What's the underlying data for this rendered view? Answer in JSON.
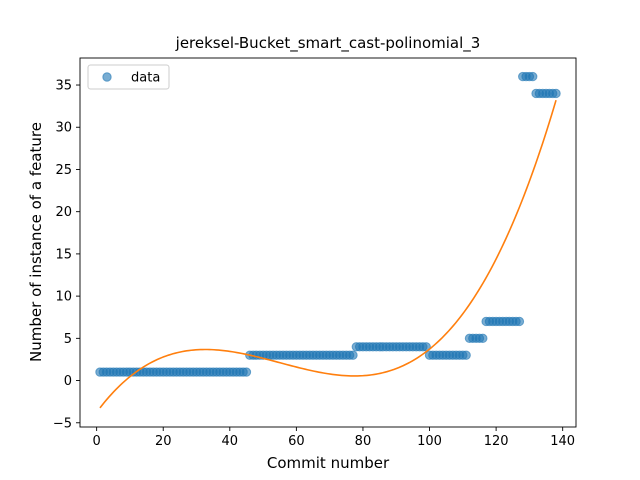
{
  "chart_data": {
    "type": "scatter",
    "title": "jereksel-Bucket_smart_cast-polinomial_3",
    "xlabel": "Commit number",
    "ylabel": "Number of instance of a feature",
    "xlim": [
      -5,
      144
    ],
    "ylim": [
      -5.5,
      38.2
    ],
    "xticks": [
      0,
      20,
      40,
      60,
      80,
      100,
      120,
      140
    ],
    "yticks": [
      -5,
      0,
      5,
      10,
      15,
      20,
      25,
      30,
      35
    ],
    "grid": false,
    "legend": {
      "position": "top-left",
      "entries": [
        "data"
      ]
    },
    "colors": {
      "data": "#1f77b4",
      "fit": "#ff7f0e"
    },
    "series": [
      {
        "name": "data",
        "kind": "scatter",
        "segments": [
          {
            "x_start": 1,
            "x_end": 45,
            "y": 1
          },
          {
            "x_start": 46,
            "x_end": 77,
            "y": 3
          },
          {
            "x_start": 78,
            "x_end": 99,
            "y": 4
          },
          {
            "x_start": 100,
            "x_end": 111,
            "y": 3
          },
          {
            "x_start": 112,
            "x_end": 116,
            "y": 5
          },
          {
            "x_start": 117,
            "x_end": 127,
            "y": 7
          },
          {
            "x_start": 128,
            "x_end": 131,
            "y": 36
          },
          {
            "x_start": 132,
            "x_end": 138,
            "y": 34
          }
        ]
      },
      {
        "kind": "line",
        "x": [
          1,
          10,
          20,
          33,
          45,
          60,
          78,
          90,
          100,
          110,
          120,
          130,
          138
        ],
        "y": [
          -3.6,
          0.8,
          3.0,
          3.7,
          3.0,
          1.6,
          0.4,
          1.2,
          3.6,
          8.0,
          14.8,
          24.0,
          32.7
        ]
      }
    ]
  }
}
